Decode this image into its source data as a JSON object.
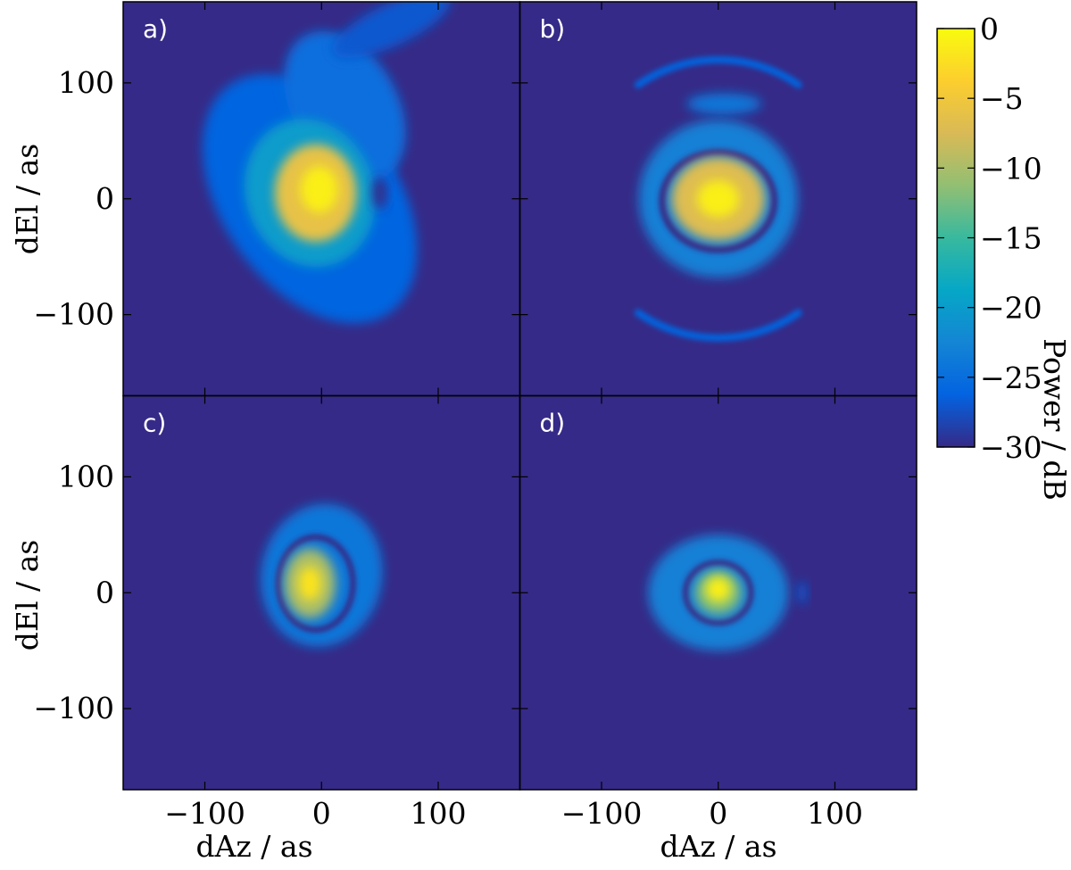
{
  "chart_data": {
    "type": "heatmap",
    "colorbar": {
      "label": "Power / dB",
      "range": [
        -30,
        0
      ],
      "ticks": [
        0,
        -5,
        -10,
        -15,
        -20,
        -25,
        -30
      ],
      "tick_labels": [
        "0",
        "−5",
        "−10",
        "−15",
        "−20",
        "−25",
        "−30"
      ],
      "colormap": [
        "#352a87",
        "#0363e1",
        "#1485d4",
        "#06a7c6",
        "#38b99e",
        "#92bf73",
        "#d9ba56",
        "#fcce2e",
        "#f9fb0e"
      ]
    },
    "axes": {
      "xlabel": "dAz / as",
      "ylabel": "dEl / as",
      "xlim": [
        -170,
        170
      ],
      "ylim": [
        -170,
        170
      ],
      "x_ticks": [
        -100,
        0,
        100
      ],
      "y_ticks": [
        100,
        0,
        -100
      ],
      "x_tick_labels": [
        "−100",
        "0",
        "100"
      ],
      "y_tick_labels": [
        "100",
        "0",
        "−100"
      ]
    },
    "panels": [
      {
        "tag": "a)",
        "description_level_db": -30,
        "features": [
          {
            "kind": "blob",
            "cx": -10,
            "cy": 0,
            "rx": 75,
            "ry": 120,
            "angle": 35,
            "level": -26
          },
          {
            "kind": "blob",
            "cx": 20,
            "cy": 80,
            "rx": 45,
            "ry": 70,
            "angle": 30,
            "level": -25
          },
          {
            "kind": "blob",
            "cx": 60,
            "cy": 150,
            "rx": 55,
            "ry": 18,
            "angle": 25,
            "level": -27
          },
          {
            "kind": "blob",
            "cx": -10,
            "cy": 5,
            "rx": 55,
            "ry": 65,
            "angle": 20,
            "level": -20
          },
          {
            "kind": "blob",
            "cx": -5,
            "cy": 5,
            "rx": 35,
            "ry": 42,
            "angle": 0,
            "level": -6
          },
          {
            "kind": "blob",
            "cx": -2,
            "cy": 8,
            "rx": 16,
            "ry": 20,
            "angle": 0,
            "level": -1
          },
          {
            "kind": "blob",
            "cx": 50,
            "cy": 5,
            "rx": 6,
            "ry": 14,
            "angle": 0,
            "level": -30
          }
        ]
      },
      {
        "tag": "b)",
        "features": [
          {
            "kind": "blob",
            "cx": 0,
            "cy": 0,
            "rx": 68,
            "ry": 68,
            "angle": 0,
            "level": -23
          },
          {
            "kind": "ring",
            "cx": 0,
            "cy": -2,
            "rx": 48,
            "ry": 42,
            "width": 6,
            "level": -30
          },
          {
            "kind": "blob",
            "cx": 0,
            "cy": 0,
            "rx": 40,
            "ry": 36,
            "angle": 0,
            "level": -7
          },
          {
            "kind": "blob",
            "cx": 0,
            "cy": 0,
            "rx": 18,
            "ry": 16,
            "angle": 0,
            "level": -1
          },
          {
            "kind": "blob",
            "cx": 5,
            "cy": 82,
            "rx": 32,
            "ry": 9,
            "angle": 0,
            "level": -24
          },
          {
            "kind": "arc",
            "cx": 0,
            "cy": 0,
            "r": 120,
            "start": 55,
            "end": 125,
            "width": 6,
            "level": -26
          },
          {
            "kind": "arc",
            "cx": 0,
            "cy": 0,
            "r": 120,
            "start": 235,
            "end": 305,
            "width": 6,
            "level": -26
          }
        ]
      },
      {
        "tag": "c)",
        "features": [
          {
            "kind": "blob",
            "cx": 0,
            "cy": 15,
            "rx": 52,
            "ry": 62,
            "angle": -10,
            "level": -24
          },
          {
            "kind": "ring",
            "cx": -5,
            "cy": 8,
            "rx": 32,
            "ry": 40,
            "width": 5,
            "level": -30
          },
          {
            "kind": "blob",
            "cx": -10,
            "cy": 8,
            "rx": 22,
            "ry": 30,
            "angle": 0,
            "level": -10
          },
          {
            "kind": "blob",
            "cx": -10,
            "cy": 8,
            "rx": 10,
            "ry": 15,
            "angle": 0,
            "level": -2
          }
        ]
      },
      {
        "tag": "d)",
        "features": [
          {
            "kind": "blob",
            "cx": 0,
            "cy": 0,
            "rx": 60,
            "ry": 50,
            "angle": 0,
            "level": -23
          },
          {
            "kind": "ring",
            "cx": 0,
            "cy": 0,
            "rx": 28,
            "ry": 26,
            "width": 5,
            "level": -30
          },
          {
            "kind": "blob",
            "cx": 0,
            "cy": 0,
            "rx": 20,
            "ry": 19,
            "angle": 0,
            "level": -12
          },
          {
            "kind": "blob",
            "cx": 0,
            "cy": 3,
            "rx": 11,
            "ry": 11,
            "angle": 0,
            "level": -1
          },
          {
            "kind": "blob",
            "cx": 72,
            "cy": 0,
            "rx": 4,
            "ry": 10,
            "angle": 0,
            "level": -27
          }
        ]
      }
    ]
  }
}
